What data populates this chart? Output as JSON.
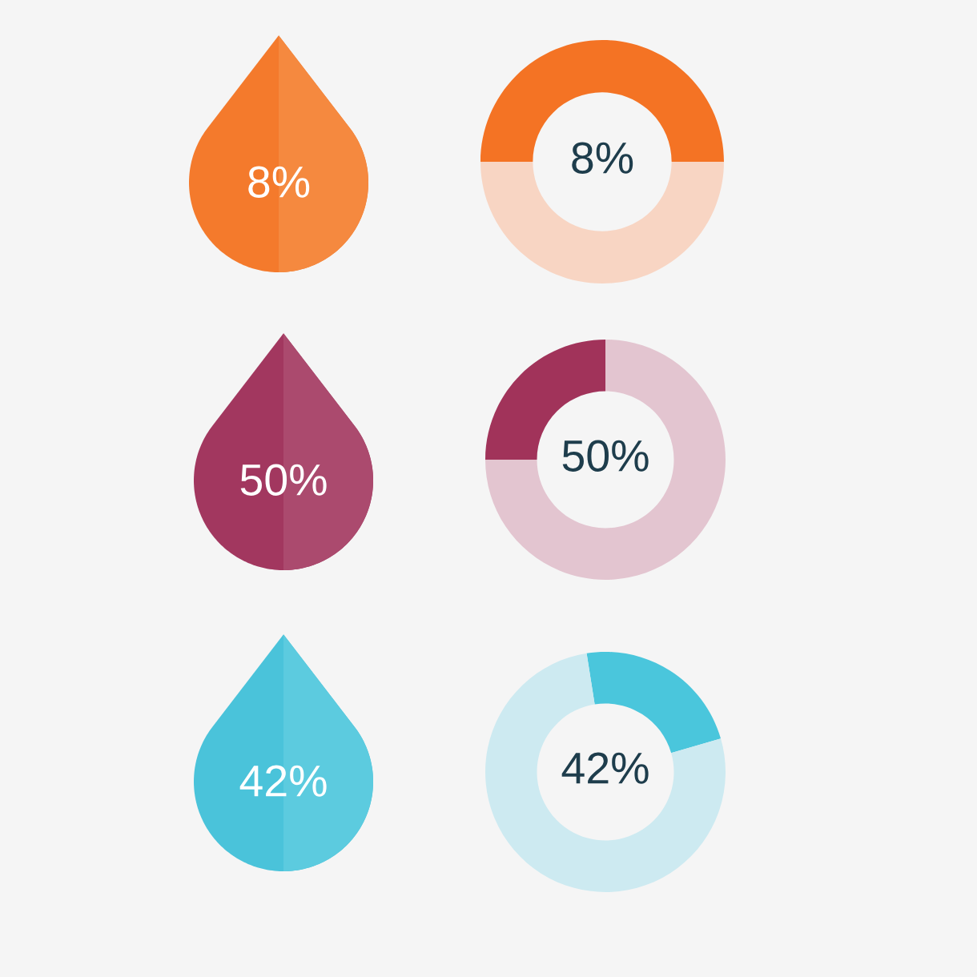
{
  "chart_data": [
    {
      "type": "other",
      "colors": [
        "#f47a2c",
        "#f5893f"
      ],
      "annotations": [
        "8%"
      ]
    },
    {
      "type": "donut",
      "categories": [
        null,
        null
      ],
      "values": [
        50,
        50
      ],
      "colors": [
        "#f47324",
        "#f8d5c3"
      ],
      "annotations": [
        "8%"
      ]
    },
    {
      "type": "other",
      "colors": [
        "#a2375f",
        "#ab4a6e"
      ],
      "annotations": [
        "50%"
      ]
    },
    {
      "type": "donut",
      "categories": [
        null,
        null
      ],
      "values": [
        25,
        75
      ],
      "colors": [
        "#a1335a",
        "#e3c5d0"
      ],
      "annotations": [
        "50%"
      ]
    },
    {
      "type": "other",
      "colors": [
        "#4ac3da",
        "#5ccbdf"
      ],
      "annotations": [
        "42%"
      ]
    },
    {
      "type": "donut",
      "categories": [
        null,
        null
      ],
      "values": [
        23,
        77
      ],
      "colors": [
        "#4ac6dc",
        "#cdeaf1"
      ],
      "annotations": [
        "42%"
      ]
    }
  ]
}
